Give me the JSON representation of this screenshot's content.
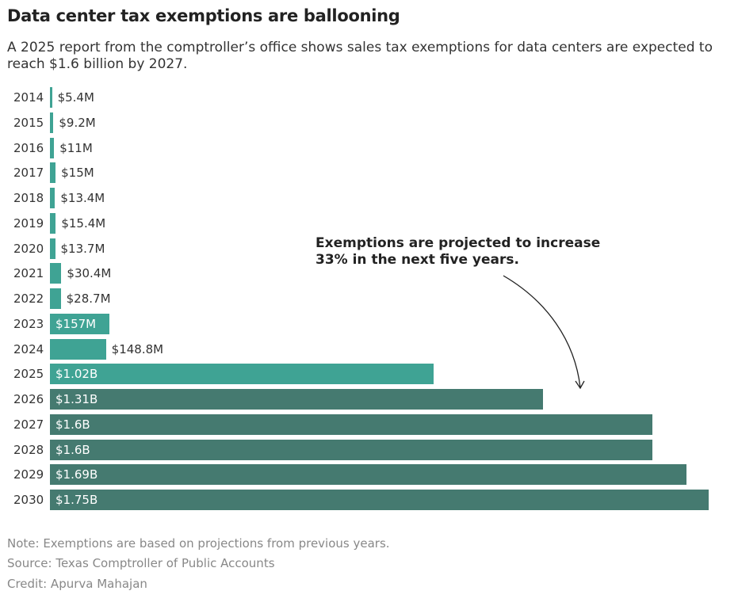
{
  "chart_data": {
    "type": "bar",
    "orientation": "horizontal",
    "title": "Data center tax exemptions are ballooning",
    "subtitle": "A 2025 report from the comptroller’s office shows sales tax exemptions for data centers are expected to reach $1.6 billion by 2027.",
    "categories": [
      "2014",
      "2015",
      "2016",
      "2017",
      "2018",
      "2019",
      "2020",
      "2021",
      "2022",
      "2023",
      "2024",
      "2025",
      "2026",
      "2027",
      "2028",
      "2029",
      "2030"
    ],
    "values_millions": [
      5.4,
      9.2,
      11,
      15,
      13.4,
      15.4,
      13.7,
      30.4,
      28.7,
      157,
      148.8,
      1020,
      1310,
      1600,
      1600,
      1690,
      1750
    ],
    "data_labels": [
      "$5.4M",
      "$9.2M",
      "$11M",
      "$15M",
      "$13.4M",
      "$15.4M",
      "$13.7M",
      "$30.4M",
      "$28.7M",
      "$157M",
      "$148.8M",
      "$1.02B",
      "$1.31B",
      "$1.6B",
      "$1.6B",
      "$1.69B",
      "$1.75B"
    ],
    "projected": [
      false,
      false,
      false,
      false,
      false,
      false,
      false,
      false,
      false,
      false,
      false,
      false,
      true,
      true,
      true,
      true,
      true
    ],
    "colors": {
      "actual": "#3fa394",
      "projected": "#457a70"
    },
    "xlim": [
      0,
      1750
    ],
    "grid": false,
    "annotation": "Exemptions are projected to increase 33% in the next five years."
  },
  "footer": {
    "note": "Note: Exemptions are based on projections from previous years.",
    "source": "Source: Texas Comptroller of Public Accounts",
    "credit": "Credit: Apurva Mahajan"
  }
}
